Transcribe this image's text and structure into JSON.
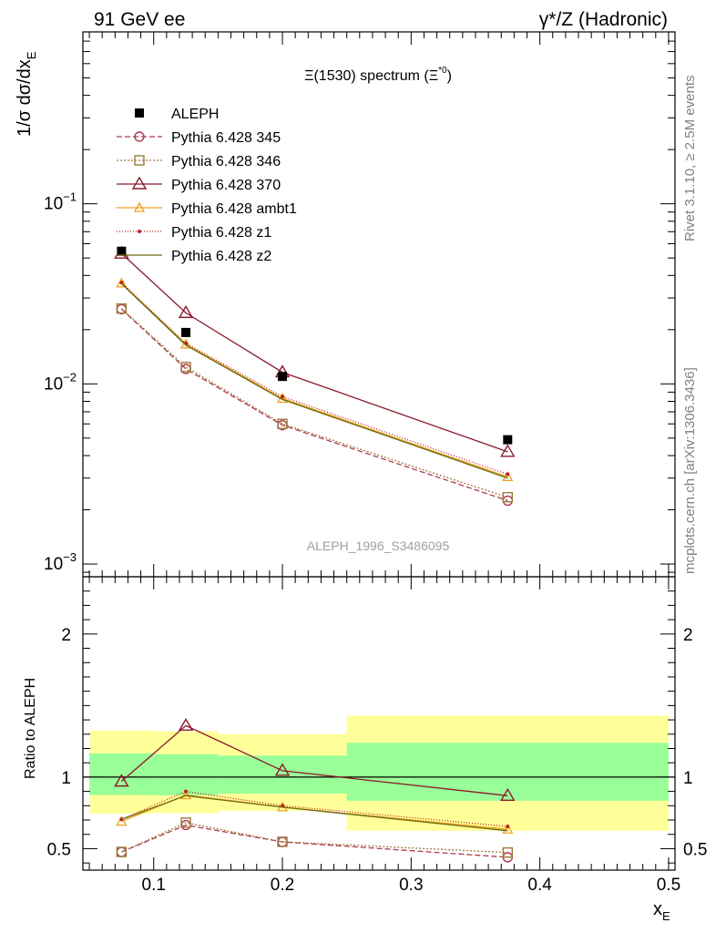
{
  "header": {
    "left": "91 GeV ee",
    "right": "γ*/Z (Hadronic)"
  },
  "side_labels": {
    "rivet": "Rivet 3.1.10, ≥ 2.5M events",
    "mcplots": "mcplots.cern.ch [arXiv:1306.3436]"
  },
  "chart_data": [
    {
      "type": "line",
      "title": "Ξ(1530) spectrum (Ξ*0)",
      "title_main": "Ξ(1530) spectrum (Ξ",
      "title_sup": "*0",
      "title_end": ")",
      "ylabel": "1/σ dσ/dx_E",
      "ylabel_main": "1/σ dσ/dx",
      "ylabel_sub": "E",
      "yscale": "log",
      "ylim": [
        0.00085,
        0.9
      ],
      "xlim": [
        0.045,
        0.505
      ],
      "yticks": [
        {
          "v": 0.001,
          "base": "10",
          "exp": "−3"
        },
        {
          "v": 0.01,
          "base": "10",
          "exp": "−2"
        },
        {
          "v": 0.1,
          "base": "10",
          "exp": "−1"
        }
      ],
      "watermark": "ALEPH_1996_S3486095",
      "legend_position": "top-left",
      "data": {
        "name": "ALEPH",
        "x": [
          0.075,
          0.125,
          0.2,
          0.375
        ],
        "y": [
          0.0545,
          0.0193,
          0.011,
          0.0049
        ]
      },
      "series": [
        {
          "name": "Pythia 6.428 345",
          "color": "#b03a4e",
          "dash": "6,3",
          "marker": "circle",
          "x": [
            0.075,
            0.125,
            0.2,
            0.375
          ],
          "y": [
            0.026,
            0.0121,
            0.0059,
            0.00225
          ]
        },
        {
          "name": "Pythia 6.428 346",
          "color": "#9c7a3c",
          "dash": "2,2",
          "marker": "square",
          "x": [
            0.075,
            0.125,
            0.2,
            0.375
          ],
          "y": [
            0.0262,
            0.0124,
            0.006,
            0.00235
          ]
        },
        {
          "name": "Pythia 6.428 370",
          "color": "#8b1a2b",
          "dash": "",
          "marker": "triangle",
          "x": [
            0.075,
            0.125,
            0.2,
            0.375
          ],
          "y": [
            0.053,
            0.0248,
            0.0116,
            0.0042
          ]
        },
        {
          "name": "Pythia 6.428 ambt1",
          "color": "#f0a020",
          "dash": "",
          "marker": "triangle-small",
          "x": [
            0.075,
            0.125,
            0.2,
            0.375
          ],
          "y": [
            0.0362,
            0.0166,
            0.0083,
            0.00305
          ]
        },
        {
          "name": "Pythia 6.428 z1",
          "color": "#c0201a",
          "dash": "1,2",
          "marker": "dot",
          "x": [
            0.075,
            0.125,
            0.2,
            0.375
          ],
          "y": [
            0.0365,
            0.0168,
            0.0085,
            0.00315
          ]
        },
        {
          "name": "Pythia 6.428 z2",
          "color": "#6b6b10",
          "dash": "",
          "marker": "none",
          "x": [
            0.075,
            0.125,
            0.2,
            0.375
          ],
          "y": [
            0.036,
            0.0164,
            0.0082,
            0.003
          ]
        }
      ]
    },
    {
      "type": "line",
      "title": "",
      "ylabel": "Ratio to ALEPH",
      "xlabel": "x_E",
      "xlabel_main": "x",
      "xlabel_sub": "E",
      "ylim": [
        0.35,
        2.4
      ],
      "xlim": [
        0.045,
        0.505
      ],
      "yticks": [
        0.5,
        1,
        2
      ],
      "yticklabels": [
        "0.5",
        "1",
        "2"
      ],
      "xticks": [
        0.1,
        0.2,
        0.3,
        0.4,
        0.5
      ],
      "xticklabels": [
        "0.1",
        "0.2",
        "0.3",
        "0.4",
        "0.5"
      ],
      "bands": [
        {
          "x0": 0.05,
          "x1": 0.1,
          "outer": [
            0.745,
            1.325
          ],
          "inner": [
            0.875,
            1.165
          ]
        },
        {
          "x0": 0.1,
          "x1": 0.15,
          "outer": [
            0.748,
            1.32
          ],
          "inner": [
            0.873,
            1.16
          ]
        },
        {
          "x0": 0.15,
          "x1": 0.25,
          "outer": [
            0.765,
            1.3
          ],
          "inner": [
            0.885,
            1.15
          ]
        },
        {
          "x0": 0.25,
          "x1": 0.5,
          "outer": [
            0.625,
            1.43
          ],
          "inner": [
            0.835,
            1.24
          ]
        }
      ],
      "series": [
        {
          "name": "Pythia 6.428 345",
          "color": "#b03a4e",
          "dash": "6,3",
          "marker": "circle",
          "x": [
            0.075,
            0.125,
            0.2,
            0.375
          ],
          "y": [
            0.477,
            0.665,
            0.547,
            0.44
          ]
        },
        {
          "name": "Pythia 6.428 346",
          "color": "#9c7a3c",
          "dash": "2,2",
          "marker": "square",
          "x": [
            0.075,
            0.125,
            0.2,
            0.375
          ],
          "y": [
            0.477,
            0.682,
            0.548,
            0.473
          ]
        },
        {
          "name": "Pythia 6.428 370",
          "color": "#8b1a2b",
          "dash": "",
          "marker": "triangle",
          "x": [
            0.075,
            0.125,
            0.2,
            0.375
          ],
          "y": [
            0.97,
            1.36,
            1.045,
            0.87
          ]
        },
        {
          "name": "Pythia 6.428 ambt1",
          "color": "#f0a020",
          "dash": "",
          "marker": "triangle-small",
          "x": [
            0.075,
            0.125,
            0.2,
            0.375
          ],
          "y": [
            0.69,
            0.875,
            0.79,
            0.635
          ]
        },
        {
          "name": "Pythia 6.428 z1",
          "color": "#c0201a",
          "dash": "1,2",
          "marker": "dot",
          "x": [
            0.075,
            0.125,
            0.2,
            0.375
          ],
          "y": [
            0.705,
            0.9,
            0.8,
            0.655
          ]
        },
        {
          "name": "Pythia 6.428 z2",
          "color": "#6b6b10",
          "dash": "",
          "marker": "none",
          "x": [
            0.075,
            0.125,
            0.2,
            0.375
          ],
          "y": [
            0.705,
            0.87,
            0.79,
            0.625
          ]
        }
      ]
    }
  ]
}
